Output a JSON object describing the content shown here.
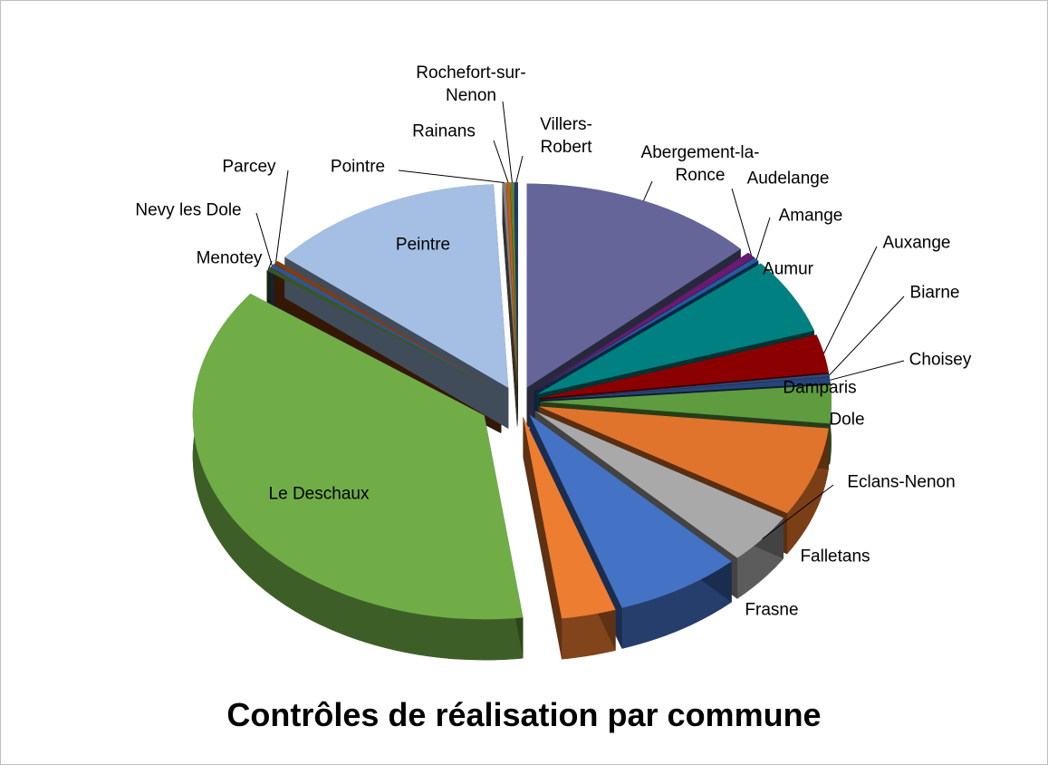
{
  "chart_data": {
    "type": "pie",
    "title": "Contrôles de réalisation par commune",
    "categories": [
      "Abergement-la-Ronce",
      "Audelange",
      "Amange",
      "Aumur",
      "Auxange",
      "Biarne",
      "Choisey",
      "Damparis",
      "Dole",
      "Eclans-Nenon",
      "Falletans",
      "Frasne",
      "Le Deschaux",
      "Menotey",
      "Nevy les Dole",
      "Parcey",
      "Peintre",
      "Pointre",
      "Rainans",
      "Rochefort-sur-Nenon",
      "Villers-Robert"
    ],
    "values": [
      13,
      0.5,
      0.3,
      6,
      3,
      0.2,
      0.5,
      3,
      7,
      4,
      7,
      3,
      37,
      0.3,
      0.3,
      0.3,
      13,
      0.2,
      0.2,
      0.2,
      0.2
    ],
    "colors": [
      "#65659a",
      "#6a1a70",
      "#1f5fa0",
      "#008080",
      "#8b0000",
      "#2e4a7a",
      "#264478",
      "#5e9c3f",
      "#e0742c",
      "#a9a9a9",
      "#4472c4",
      "#ed7d31",
      "#70ad47",
      "#375623",
      "#2f5496",
      "#843c0c",
      "#a4bfe3",
      "#7f7f7f",
      "#c55a11",
      "#548235",
      "#1f3864"
    ]
  }
}
